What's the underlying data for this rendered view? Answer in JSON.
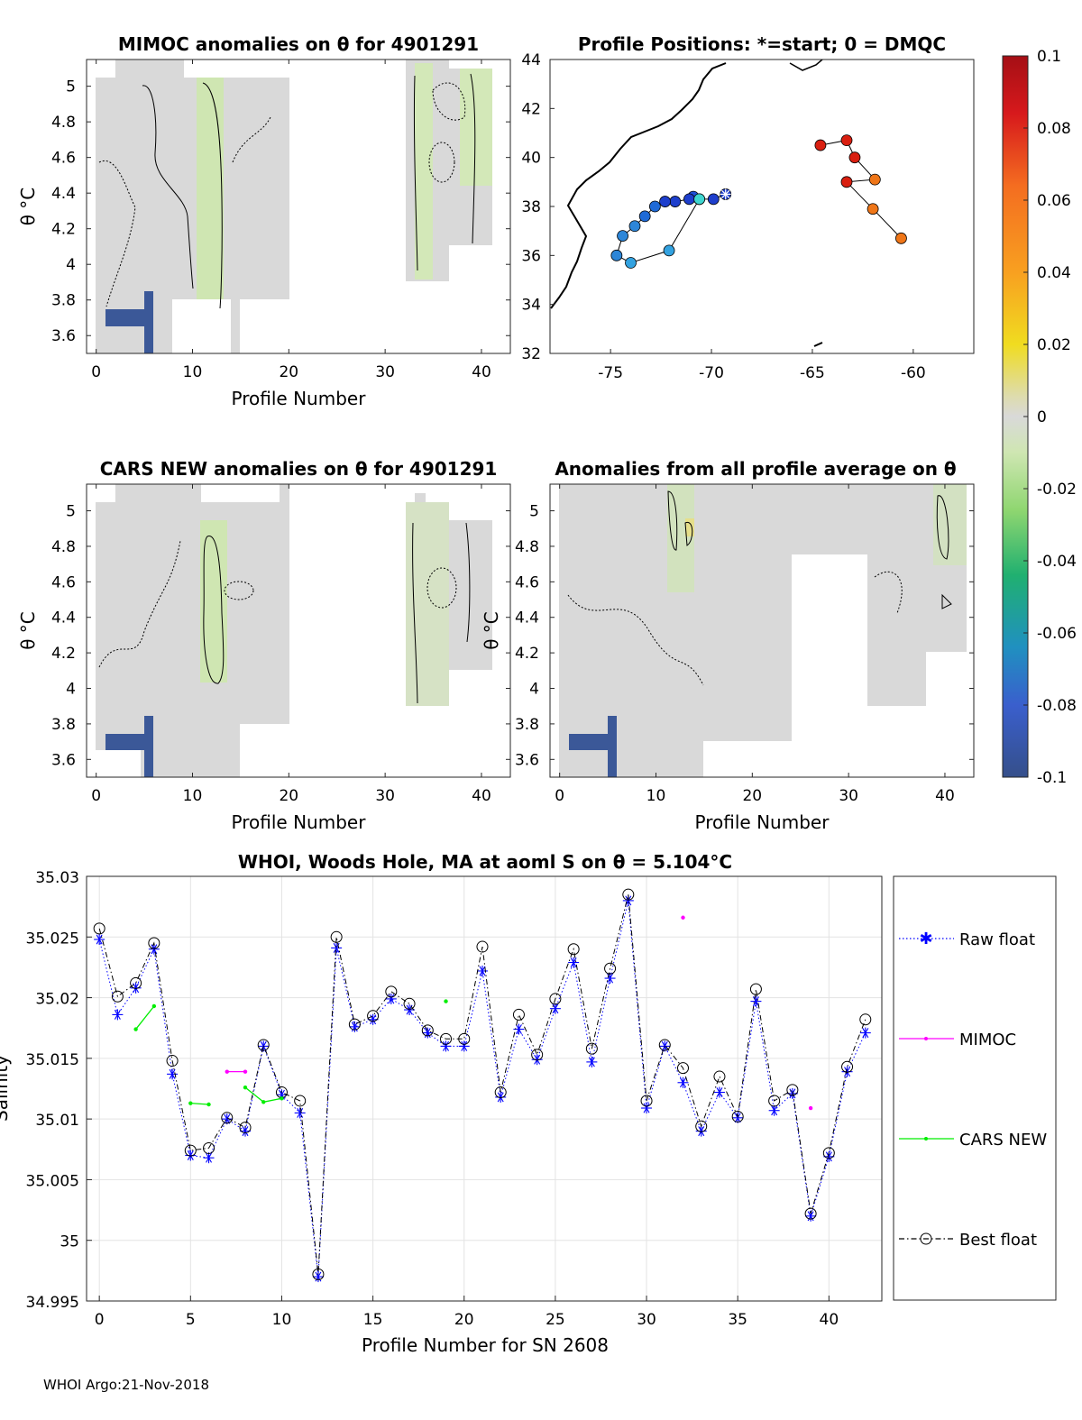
{
  "figure": {
    "footer": "WHOI Argo:21-Nov-2018"
  },
  "panels": {
    "mimoc": {
      "title": "MIMOC anomalies on θ  for 4901291",
      "xlabel": "Profile Number",
      "ylabel": "θ °C",
      "xticks": [
        "0",
        "10",
        "20",
        "30",
        "40"
      ],
      "yticks": [
        "3.6",
        "3.8",
        "4",
        "4.2",
        "4.4",
        "4.6",
        "4.8",
        "5"
      ]
    },
    "positions": {
      "title": "Profile Positions: *=start; 0 = DMQC",
      "xticks": [
        "-75",
        "-70",
        "-65",
        "-60"
      ],
      "yticks": [
        "32",
        "34",
        "36",
        "38",
        "40",
        "42",
        "44"
      ]
    },
    "cars": {
      "title": "CARS NEW anomalies on θ for 4901291",
      "xlabel": "Profile Number",
      "ylabel": "θ °C",
      "xticks": [
        "0",
        "10",
        "20",
        "30",
        "40"
      ],
      "yticks": [
        "3.6",
        "3.8",
        "4",
        "4.2",
        "4.4",
        "4.6",
        "4.8",
        "5"
      ]
    },
    "allavg": {
      "title": "Anomalies from all profile average on θ",
      "xlabel": "Profile Number",
      "ylabel": "θ °C",
      "xticks": [
        "0",
        "10",
        "20",
        "30",
        "40"
      ],
      "yticks": [
        "3.6",
        "3.8",
        "4",
        "4.2",
        "4.4",
        "4.6",
        "4.8",
        "5"
      ]
    },
    "colorbar": {
      "ticks": [
        "0.1",
        "0.08",
        "0.06",
        "0.04",
        "0.02",
        "0",
        "-0.02",
        "-0.04",
        "-0.06",
        "-0.08",
        "-0.1"
      ]
    },
    "salinity": {
      "title": "WHOI, Woods Hole, MA at aoml S on θ = 5.104°C",
      "xlabel": "Profile Number for SN 2608",
      "ylabel": "Salinity",
      "xticks": [
        "0",
        "5",
        "10",
        "15",
        "20",
        "25",
        "30",
        "35",
        "40"
      ],
      "yticks": [
        "34.995",
        "35",
        "35.005",
        "35.01",
        "35.015",
        "35.02",
        "35.025",
        "35.03"
      ]
    },
    "legend": {
      "raw": "Raw float",
      "mimoc": "MIMOC",
      "cars": "CARS NEW",
      "best": "Best float"
    }
  },
  "chart_data": [
    {
      "type": "line",
      "title": "WHOI, Woods Hole, MA at aoml S on θ = 5.104°C",
      "xlabel": "Profile Number for SN 2608",
      "ylabel": "Salinity",
      "xlim": [
        -0.7,
        42.9
      ],
      "ylim": [
        34.995,
        35.03
      ],
      "series": [
        {
          "name": "Raw float",
          "color": "#0000ff",
          "x": [
            0,
            1,
            2,
            3,
            4,
            5,
            6,
            7,
            8,
            9,
            10,
            11,
            12,
            13,
            14,
            15,
            16,
            17,
            18,
            19,
            20,
            21,
            22,
            23,
            24,
            25,
            26,
            27,
            28,
            29,
            30,
            31,
            32,
            33,
            34,
            35,
            36,
            37,
            38,
            39,
            40,
            41,
            42
          ],
          "values": [
            35.0248,
            35.0186,
            35.0208,
            35.024,
            35.0137,
            35.007,
            35.0068,
            35.01,
            35.009,
            35.016,
            35.012,
            35.0105,
            34.997,
            35.0241,
            35.0176,
            35.0182,
            35.0199,
            35.019,
            35.0171,
            35.016,
            35.016,
            35.0222,
            35.0118,
            35.0174,
            35.0149,
            35.0191,
            35.0229,
            35.0147,
            35.0216,
            35.028,
            35.0109,
            35.016,
            35.013,
            35.009,
            35.0122,
            35.0101,
            35.0197,
            35.0107,
            35.0121,
            35.002,
            35.0069,
            35.0139,
            35.0171
          ]
        },
        {
          "name": "Best float",
          "color": "#000000",
          "x": [
            0,
            1,
            2,
            3,
            4,
            5,
            6,
            7,
            8,
            9,
            10,
            11,
            12,
            13,
            14,
            15,
            16,
            17,
            18,
            19,
            20,
            21,
            22,
            23,
            24,
            25,
            26,
            27,
            28,
            29,
            30,
            31,
            32,
            33,
            34,
            35,
            36,
            37,
            38,
            39,
            40,
            41,
            42
          ],
          "values": [
            35.0257,
            35.0201,
            35.0212,
            35.0245,
            35.0148,
            35.0074,
            35.0076,
            35.0101,
            35.0093,
            35.0161,
            35.0122,
            35.0115,
            34.9972,
            35.025,
            35.0178,
            35.0185,
            35.0205,
            35.0195,
            35.0173,
            35.0166,
            35.0166,
            35.0242,
            35.0122,
            35.0186,
            35.0153,
            35.0199,
            35.024,
            35.0158,
            35.0224,
            35.0285,
            35.0115,
            35.0161,
            35.0142,
            35.0094,
            35.0135,
            35.0102,
            35.0207,
            35.0115,
            35.0124,
            35.0022,
            35.0072,
            35.0143,
            35.0182
          ]
        },
        {
          "name": "MIMOC",
          "color": "#ff00ff",
          "x": [
            7,
            8,
            32,
            39
          ],
          "values": [
            35.0139,
            35.0139,
            35.0266,
            35.0109
          ],
          "segments": [
            [
              0,
              1
            ]
          ]
        },
        {
          "name": "CARS NEW",
          "color": "#00ee00",
          "x": [
            2,
            3,
            5,
            6,
            8,
            9,
            10,
            19
          ],
          "values": [
            35.0174,
            35.0193,
            35.0113,
            35.0112,
            35.0126,
            35.0114,
            35.0117,
            35.0197
          ],
          "segments": [
            [
              0,
              1
            ],
            [
              2,
              3
            ],
            [
              4,
              5
            ],
            [
              5,
              6
            ]
          ]
        }
      ]
    },
    {
      "type": "scatter",
      "title": "Profile Positions: *=start; 0 = DMQC",
      "xlim": [
        -78.0,
        -57.0
      ],
      "ylim": [
        32.0,
        44.0
      ],
      "groups": [
        {
          "lon": [
            -69.3,
            -69.9,
            -70.6,
            -70.9,
            -71.1,
            -71.8,
            -72.3,
            -72.8,
            -73.3,
            -73.8,
            -74.4,
            -74.7,
            -74.0,
            -72.1,
            -70.6
          ],
          "lat": [
            38.5,
            38.3,
            38.3,
            38.4,
            38.3,
            38.2,
            38.2,
            38.0,
            37.6,
            37.2,
            36.8,
            36.0,
            35.7,
            36.2,
            38.3
          ],
          "anomaly": [
            -0.09,
            -0.09,
            -0.09,
            -0.08,
            -0.085,
            -0.085,
            -0.085,
            -0.075,
            -0.07,
            -0.065,
            -0.06,
            -0.06,
            -0.055,
            -0.055,
            -0.04
          ]
        },
        {
          "lon": [
            -64.6,
            -63.3,
            -62.9,
            -61.9,
            -63.3,
            -62.0,
            -60.6
          ],
          "lat": [
            40.5,
            40.7,
            40.0,
            39.1,
            39.0,
            37.9,
            36.7
          ],
          "anomaly": [
            0.1,
            0.095,
            0.1,
            0.07,
            0.1,
            0.07,
            0.065
          ]
        }
      ]
    },
    {
      "type": "heatmap",
      "title": "MIMOC anomalies on θ  for 4901291",
      "xlabel": "Profile Number",
      "ylabel": "θ °C",
      "xlim": [
        -1,
        43
      ],
      "ylim": [
        3.5,
        5.15
      ],
      "clim": [
        -0.1,
        0.1
      ]
    },
    {
      "type": "heatmap",
      "title": "CARS NEW anomalies on θ for 4901291",
      "xlabel": "Profile Number",
      "ylabel": "θ °C",
      "xlim": [
        -1,
        43
      ],
      "ylim": [
        3.5,
        5.15
      ],
      "clim": [
        -0.1,
        0.1
      ]
    },
    {
      "type": "heatmap",
      "title": "Anomalies from all profile average on θ",
      "xlabel": "Profile Number",
      "ylabel": "θ °C",
      "xlim": [
        -1,
        43
      ],
      "ylim": [
        3.5,
        5.15
      ],
      "clim": [
        -0.1,
        0.1
      ]
    }
  ]
}
